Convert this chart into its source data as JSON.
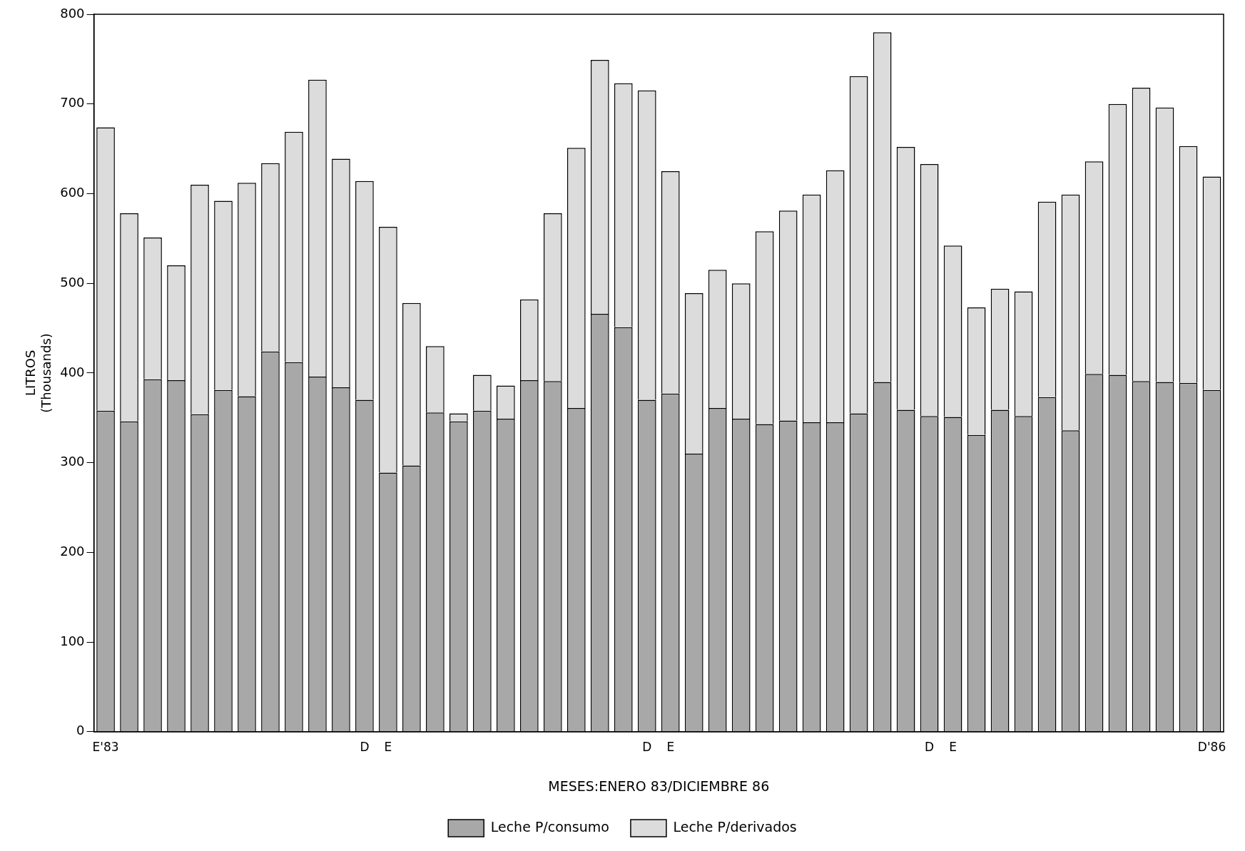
{
  "chart_data": {
    "type": "bar",
    "stacked": true,
    "xlabel": "MESES:ENERO 83/DICIEMBRE 86",
    "ylabel": "LITROS\n(Thousands)",
    "categories": [
      "E'83",
      null,
      null,
      null,
      null,
      null,
      null,
      null,
      null,
      null,
      null,
      "D",
      "E",
      null,
      null,
      null,
      null,
      null,
      null,
      null,
      null,
      null,
      null,
      "D",
      "E",
      null,
      null,
      null,
      null,
      null,
      null,
      null,
      null,
      null,
      null,
      "D",
      "E",
      null,
      null,
      null,
      null,
      null,
      null,
      null,
      null,
      null,
      null,
      "D'86"
    ],
    "series": [
      {
        "name": "Leche P/consumo",
        "color": "#a8a8a8",
        "values": [
          358,
          346,
          393,
          392,
          354,
          381,
          374,
          424,
          412,
          396,
          384,
          370,
          289,
          297,
          356,
          346,
          358,
          349,
          392,
          391,
          361,
          466,
          451,
          370,
          377,
          310,
          361,
          349,
          343,
          347,
          345,
          345,
          355,
          390,
          359,
          352,
          351,
          331,
          359,
          352,
          373,
          336,
          399,
          398,
          391,
          390,
          389,
          381
        ]
      },
      {
        "name": "Leche P/derivados",
        "color": "#dcdcdc",
        "values": [
          316,
          232,
          158,
          128,
          256,
          211,
          238,
          210,
          257,
          331,
          255,
          244,
          274,
          181,
          74,
          9,
          40,
          37,
          90,
          187,
          290,
          283,
          272,
          345,
          248,
          179,
          154,
          151,
          215,
          234,
          254,
          281,
          376,
          390,
          293,
          281,
          191,
          142,
          135,
          139,
          218,
          263,
          237,
          302,
          327,
          306,
          264,
          238
        ]
      }
    ],
    "ylim": [
      0,
      800
    ],
    "yticks": [
      0,
      100,
      200,
      300,
      400,
      500,
      600,
      700,
      800
    ],
    "grid": false,
    "legend": "bottom"
  }
}
